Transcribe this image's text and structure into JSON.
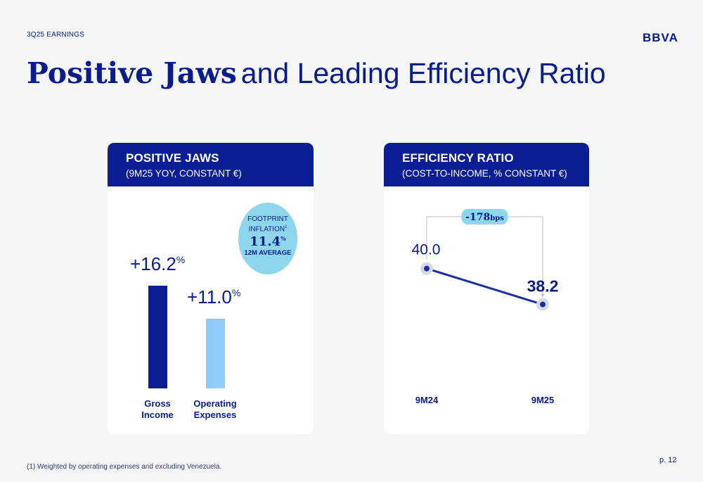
{
  "header": {
    "top_label": "3Q25 EARNINGS",
    "logo": "BBVA",
    "title_bold": "Positive Jaws",
    "title_regular": "and Leading Efficiency Ratio"
  },
  "left_panel": {
    "title": "POSITIVE JAWS",
    "subtitle": "(9M25 YOY, CONSTANT €)",
    "badge": {
      "line1": "FOOTPRINT",
      "line2": "INFLATION",
      "line2_sup": "1",
      "value": "11.4",
      "value_unit": "%",
      "caption": "12M AVERAGE"
    }
  },
  "right_panel": {
    "title": "EFFICIENCY RATIO",
    "subtitle": "(COST-TO-INCOME, % CONSTANT €)",
    "delta_value": "-178",
    "delta_unit": "bps"
  },
  "chart_data": [
    {
      "type": "bar",
      "title": "POSITIVE JAWS",
      "categories": [
        "Gross Income",
        "Operating Expenses"
      ],
      "category_lines": [
        [
          "Gross",
          "Income"
        ],
        [
          "Operating",
          "Expenses"
        ]
      ],
      "values": [
        16.2,
        11.0
      ],
      "labels": [
        "+16.2",
        "+11.0"
      ],
      "unit": "%",
      "colors": [
        "#0b1e93",
        "#8ecbf8"
      ]
    },
    {
      "type": "line",
      "title": "EFFICIENCY RATIO",
      "categories": [
        "9M24",
        "9M25"
      ],
      "values": [
        40.0,
        38.2
      ],
      "labels": [
        "40.0",
        "38.2"
      ],
      "annotation": "-178bps",
      "color": "#1a2ea0"
    }
  ],
  "footer": {
    "note": "(1) Weighted by operating expenses and excluding Venezuela.",
    "page": "p. 12"
  }
}
